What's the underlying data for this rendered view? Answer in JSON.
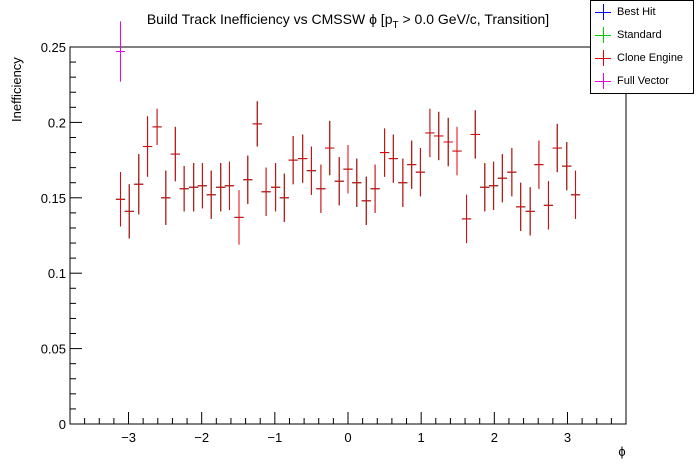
{
  "chart_data": {
    "type": "scatter",
    "title": "Build Track Inefficiency vs CMSSW ϕ [p",
    "title_sub": "T",
    "title_rest": " > 0.0 GeV/c, Transition]",
    "xlabel": "ϕ",
    "ylabel": "Inefficiency",
    "xlim": [
      -3.8,
      3.8
    ],
    "ylim": [
      0,
      0.25
    ],
    "x_ticks": [
      {
        "v": -3,
        "label": "−3"
      },
      {
        "v": -2,
        "label": "−2"
      },
      {
        "v": -1,
        "label": "−1"
      },
      {
        "v": 0,
        "label": "0"
      },
      {
        "v": 1,
        "label": "1"
      },
      {
        "v": 2,
        "label": "2"
      },
      {
        "v": 3,
        "label": "3"
      }
    ],
    "y_ticks": [
      {
        "v": 0,
        "label": "0"
      },
      {
        "v": 0.05,
        "label": "0.05"
      },
      {
        "v": 0.1,
        "label": "0.1"
      },
      {
        "v": 0.15,
        "label": "0.15"
      },
      {
        "v": 0.2,
        "label": "0.2"
      },
      {
        "v": 0.25,
        "label": "0.25"
      }
    ],
    "grid": false,
    "legend_position": "top-right",
    "bin_half_width": 0.0628,
    "x": [
      -3.11,
      -2.99,
      -2.86,
      -2.74,
      -2.61,
      -2.49,
      -2.36,
      -2.24,
      -2.11,
      -1.99,
      -1.87,
      -1.74,
      -1.62,
      -1.49,
      -1.37,
      -1.24,
      -1.12,
      -0.99,
      -0.87,
      -0.75,
      -0.62,
      -0.5,
      -0.37,
      -0.25,
      -0.12,
      0.0,
      0.12,
      0.25,
      0.37,
      0.5,
      0.62,
      0.75,
      0.87,
      0.99,
      1.12,
      1.24,
      1.37,
      1.49,
      1.62,
      1.74,
      1.87,
      1.99,
      2.11,
      2.24,
      2.36,
      2.49,
      2.61,
      2.74,
      2.86,
      2.99,
      3.11
    ],
    "series": [
      {
        "name": "Best Hit",
        "color": "#0000ff",
        "values": [
          0.149,
          0.141,
          0.159,
          0.184,
          0.197,
          0.15,
          0.179,
          0.156,
          0.157,
          0.158,
          0.152,
          0.157,
          0.158,
          0.137,
          0.162,
          0.199,
          0.154,
          0.157,
          0.15,
          0.175,
          0.176,
          0.168,
          0.156,
          0.183,
          0.161,
          0.169,
          0.16,
          0.148,
          0.156,
          0.18,
          0.176,
          0.16,
          0.172,
          0.167,
          0.193,
          0.191,
          0.187,
          0.181,
          0.136,
          0.192,
          0.157,
          0.158,
          0.163,
          0.167,
          0.144,
          0.141,
          0.172,
          0.145,
          0.183,
          0.171,
          0.152
        ],
        "errors": [
          0.018,
          0.018,
          0.02,
          0.02,
          0.012,
          0.018,
          0.018,
          0.015,
          0.016,
          0.015,
          0.016,
          0.016,
          0.016,
          0.018,
          0.016,
          0.015,
          0.016,
          0.016,
          0.016,
          0.016,
          0.016,
          0.016,
          0.016,
          0.018,
          0.016,
          0.016,
          0.016,
          0.016,
          0.016,
          0.016,
          0.016,
          0.016,
          0.016,
          0.016,
          0.016,
          0.016,
          0.016,
          0.016,
          0.016,
          0.016,
          0.016,
          0.016,
          0.016,
          0.016,
          0.016,
          0.016,
          0.016,
          0.016,
          0.016,
          0.016,
          0.016
        ]
      },
      {
        "name": "Standard",
        "color": "#00cc00",
        "values": [
          0.149,
          0.141,
          0.159,
          0.184,
          0.197,
          0.15,
          0.179,
          0.156,
          0.157,
          0.158,
          0.152,
          0.157,
          0.158,
          0.137,
          0.162,
          0.199,
          0.154,
          0.157,
          0.15,
          0.175,
          0.176,
          0.168,
          0.156,
          0.183,
          0.161,
          0.169,
          0.16,
          0.148,
          0.156,
          0.18,
          0.176,
          0.16,
          0.172,
          0.167,
          0.193,
          0.191,
          0.187,
          0.181,
          0.136,
          0.192,
          0.157,
          0.158,
          0.163,
          0.167,
          0.144,
          0.141,
          0.172,
          0.145,
          0.183,
          0.171,
          0.152
        ],
        "errors": [
          0.018,
          0.018,
          0.02,
          0.02,
          0.012,
          0.018,
          0.018,
          0.015,
          0.016,
          0.015,
          0.016,
          0.016,
          0.016,
          0.018,
          0.016,
          0.015,
          0.016,
          0.016,
          0.016,
          0.016,
          0.016,
          0.016,
          0.016,
          0.018,
          0.016,
          0.016,
          0.016,
          0.016,
          0.016,
          0.016,
          0.016,
          0.016,
          0.016,
          0.016,
          0.016,
          0.016,
          0.016,
          0.016,
          0.016,
          0.016,
          0.016,
          0.016,
          0.016,
          0.016,
          0.016,
          0.016,
          0.016,
          0.016,
          0.016,
          0.016,
          0.016
        ]
      },
      {
        "name": "Clone Engine",
        "color": "#e8000b",
        "values": [
          0.149,
          0.141,
          0.159,
          0.184,
          0.197,
          0.15,
          0.179,
          0.156,
          0.157,
          0.158,
          0.152,
          0.157,
          0.158,
          0.137,
          0.162,
          0.199,
          0.154,
          0.157,
          0.15,
          0.175,
          0.176,
          0.168,
          0.156,
          0.183,
          0.161,
          0.169,
          0.16,
          0.148,
          0.156,
          0.18,
          0.176,
          0.16,
          0.172,
          0.167,
          0.193,
          0.191,
          0.187,
          0.181,
          0.136,
          0.192,
          0.157,
          0.158,
          0.163,
          0.167,
          0.144,
          0.141,
          0.172,
          0.145,
          0.183,
          0.171,
          0.152
        ],
        "errors": [
          0.018,
          0.018,
          0.02,
          0.02,
          0.012,
          0.018,
          0.018,
          0.015,
          0.016,
          0.015,
          0.016,
          0.016,
          0.016,
          0.018,
          0.016,
          0.015,
          0.016,
          0.016,
          0.016,
          0.016,
          0.016,
          0.016,
          0.016,
          0.018,
          0.016,
          0.016,
          0.016,
          0.016,
          0.016,
          0.016,
          0.016,
          0.016,
          0.016,
          0.016,
          0.016,
          0.016,
          0.016,
          0.016,
          0.016,
          0.016,
          0.016,
          0.016,
          0.016,
          0.016,
          0.016,
          0.016,
          0.016,
          0.016,
          0.016,
          0.016,
          0.016
        ]
      },
      {
        "name": "Full Vector",
        "color": "#e800e8",
        "x": [
          -3.11
        ],
        "values": [
          0.247
        ],
        "errors": [
          0.02
        ]
      }
    ]
  }
}
